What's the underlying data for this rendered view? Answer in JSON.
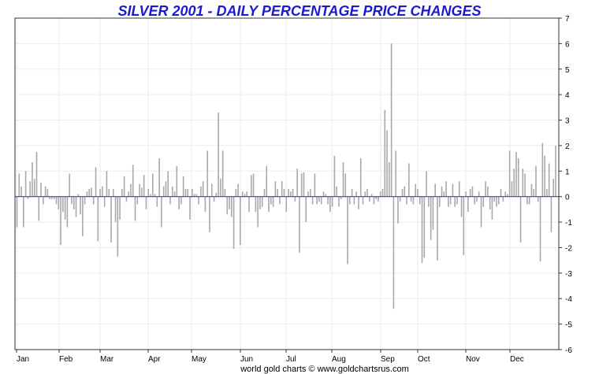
{
  "chart_data": {
    "type": "bar",
    "title": "SILVER 2001 - DAILY PERCENTAGE PRICE CHANGES",
    "credit": "world gold charts © www.goldchartsrus.com",
    "ylim": [
      -6,
      7
    ],
    "yticks": [
      "7",
      "6",
      "5",
      "4",
      "3",
      "2",
      "1",
      "0",
      "-1",
      "-2",
      "-3",
      "-4",
      "-5",
      "-6"
    ],
    "months": [
      "Jan",
      "Feb",
      "Mar",
      "Apr",
      "May",
      "Jun",
      "Jul",
      "Aug",
      "Sep",
      "Oct",
      "Nov",
      "Dec"
    ],
    "grid": true,
    "colors": {
      "bars": "#a9a9a9",
      "zero_line": "#2b2bcc",
      "grid": "#e6eef2",
      "title": "#1a1ad6"
    },
    "values": [
      -1.2,
      0.9,
      0.4,
      -1.2,
      1.0,
      -0.1,
      0.6,
      1.35,
      0.7,
      1.75,
      -0.95,
      0.55,
      -0.3,
      0.4,
      0.3,
      -0.1,
      -0.1,
      -0.1,
      -0.3,
      -0.5,
      -1.9,
      -0.6,
      -0.9,
      -1.2,
      0.9,
      -0.3,
      -0.5,
      -0.8,
      0.1,
      -0.7,
      -1.55,
      -0.3,
      0.2,
      0.3,
      0.35,
      -0.3,
      1.15,
      -1.75,
      0.3,
      0.4,
      -0.4,
      1.0,
      0.3,
      -1.8,
      0.3,
      -1.0,
      -2.35,
      -0.9,
      0.3,
      0.8,
      -0.2,
      0.2,
      0.5,
      1.25,
      -0.95,
      -0.3,
      0.5,
      0.35,
      0.85,
      -0.5,
      0.3,
      0.1,
      0.9,
      0.1,
      -0.4,
      1.5,
      -1.2,
      0.4,
      0.6,
      1.0,
      -0.3,
      0.4,
      0.2,
      1.2,
      -0.5,
      -0.3,
      0.8,
      0.3,
      0.3,
      -0.9,
      0.3,
      0.1,
      0.1,
      -0.3,
      0.4,
      0.6,
      -0.6,
      1.8,
      -1.4,
      0.5,
      -0.2,
      0.15,
      3.3,
      0.7,
      1.8,
      0.3,
      -0.7,
      -0.5,
      -0.8,
      -2.05,
      0.3,
      0.5,
      -1.9,
      0.2,
      0.1,
      0.2,
      -0.6,
      0.85,
      0.9,
      -0.6,
      -1.2,
      -0.5,
      -0.4,
      0.3,
      1.2,
      -0.6,
      -0.3,
      -0.4,
      0.6,
      0.3,
      -0.3,
      0.6,
      0.3,
      -0.6,
      0.3,
      0.2,
      0.3,
      -0.2,
      1.1,
      -2.2,
      0.9,
      0.95,
      -1.0,
      0.2,
      0.3,
      -0.3,
      0.9,
      -0.3,
      -0.2,
      -0.3,
      0.2,
      0.1,
      -0.3,
      -0.6,
      -0.4,
      1.6,
      0.4,
      -0.4,
      -0.1,
      1.35,
      0.9,
      -2.65,
      -0.3,
      0.3,
      -0.3,
      0.2,
      -0.5,
      1.5,
      -0.3,
      0.2,
      0.3,
      -0.2,
      0.1,
      -0.3,
      -0.1,
      -0.2,
      0.2,
      0.3,
      3.4,
      2.6,
      1.35,
      6.0,
      -4.4,
      1.8,
      -1.05,
      -0.2,
      0.3,
      0.4,
      -0.3,
      1.3,
      -0.2,
      -0.3,
      0.5,
      0.3,
      -0.3,
      -2.6,
      -2.4,
      1.0,
      -0.4,
      -1.7,
      -1.3,
      0.5,
      -2.5,
      -0.4,
      0.4,
      0.2,
      0.6,
      -0.4,
      -0.3,
      0.5,
      -0.4,
      -0.3,
      0.6,
      -0.8,
      -2.3,
      0.2,
      -0.6,
      0.3,
      0.4,
      -0.3,
      -0.2,
      0.2,
      -1.2,
      -0.4,
      0.6,
      0.4,
      -0.5,
      -0.9,
      -0.2,
      -0.4,
      -0.3,
      0.3,
      -0.2,
      0.2,
      0.1,
      1.8,
      0.6,
      1.1,
      1.75,
      1.5,
      -1.8,
      1.1,
      0.9,
      -0.3,
      -0.3,
      0.5,
      0.3,
      1.2,
      -0.2,
      -2.55,
      2.1,
      1.6,
      0.3,
      1.3,
      -1.4,
      0.7,
      2.0
    ]
  }
}
